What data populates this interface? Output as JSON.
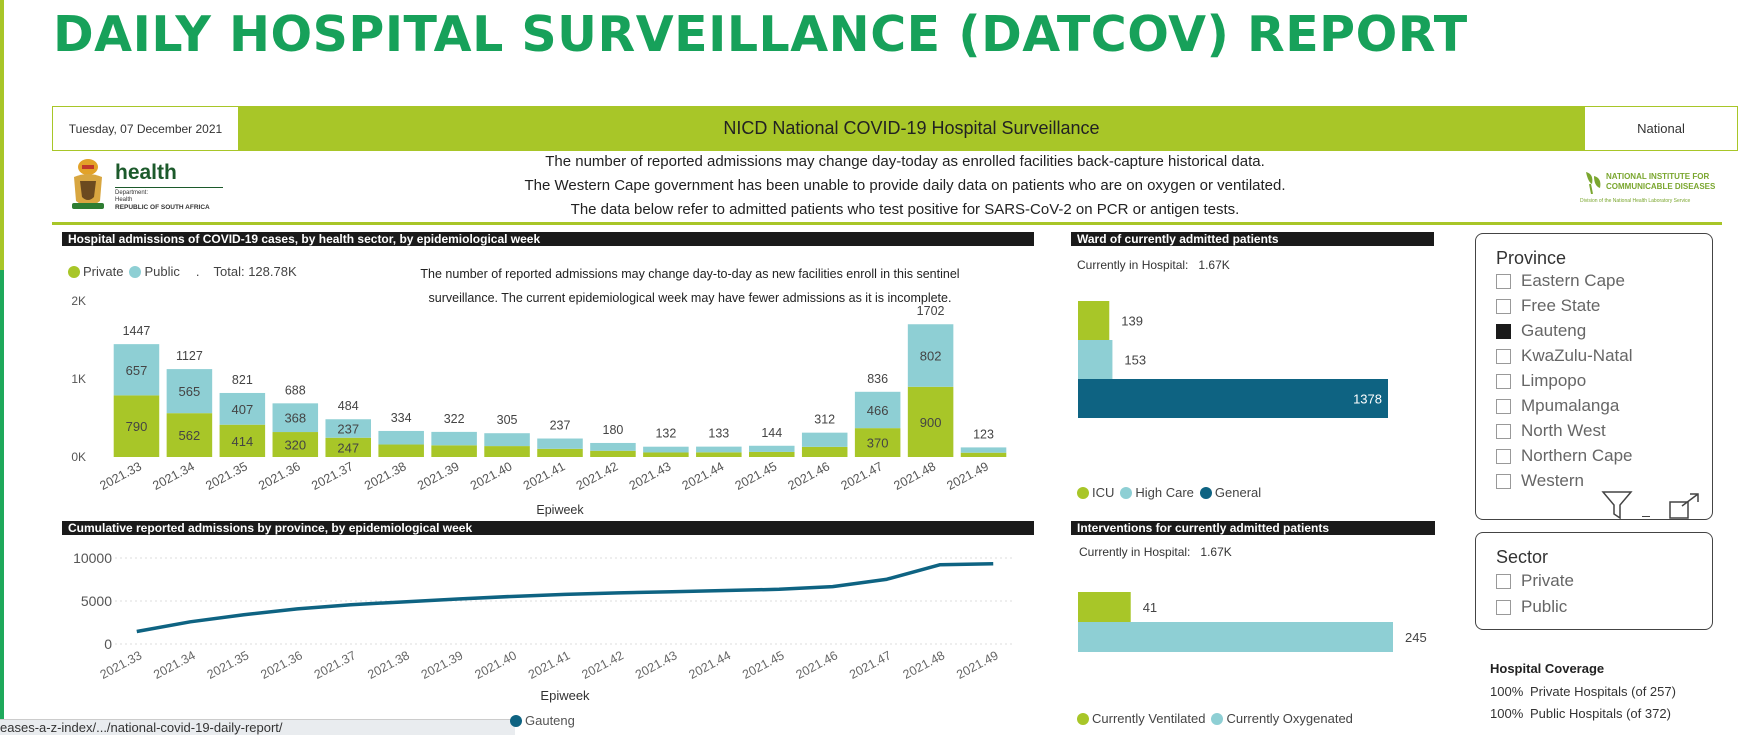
{
  "title": "DAILY HOSPITAL SURVEILLANCE (DATCOV) REPORT",
  "banner": {
    "date": "Tuesday, 07 December 2021",
    "title": "NICD National COVID-19 Hospital Surveillance",
    "scope": "National"
  },
  "logos": {
    "health_word": "health",
    "health_sub1": "Department:",
    "health_sub2": "Health",
    "health_sub3": "REPUBLIC OF SOUTH AFRICA",
    "nicd_line1": "NATIONAL INSTITUTE FOR",
    "nicd_line2": "COMMUNICABLE DISEASES",
    "nicd_line3": "Division of the National Health Laboratory Service"
  },
  "notices": [
    "The number of reported admissions may change day-today as enrolled facilities back-capture historical data.",
    "The Western Cape government has been unable to provide daily data on patients who are on oxygen or ventilated.",
    "The data below refer to admitted patients who test positive for SARS-CoV-2 on PCR or antigen tests."
  ],
  "colors": {
    "brand_green": "#17a15a",
    "lime": "#a8c628",
    "teal_light": "#8ecfd4",
    "teal_dark": "#0e6382"
  },
  "admissions_chart": {
    "header": "Hospital admissions of COVID-19 cases, by health sector, by epidemiological week",
    "legend_private": "Private",
    "legend_public": "Public",
    "legend_sep": ".",
    "total": "Total: 128.78K",
    "note_line1": "The number of reported admissions may change day-to-day as new facilities enroll in this sentinel",
    "note_line2": "surveillance. The current epidemiological week may have fewer admissions as it is incomplete."
  },
  "cumulative_chart": {
    "header": "Cumulative reported admissions by province, by epidemiological week",
    "legend_label": "Gauteng"
  },
  "ward_chart": {
    "header": "Ward of currently admitted patients",
    "current_label": "Currently in Hospital:",
    "current_value": "1.67K",
    "legend": [
      "ICU",
      "High Care",
      "General"
    ]
  },
  "interventions_chart": {
    "header": "Interventions for currently admitted patients",
    "current_label": "Currently in Hospital:",
    "current_value": "1.67K",
    "legend": [
      "Currently Ventilated",
      "Currently Oxygenated"
    ]
  },
  "province_slicer": {
    "title": "Province",
    "items": [
      {
        "label": "Eastern Cape",
        "checked": false
      },
      {
        "label": "Free State",
        "checked": false
      },
      {
        "label": "Gauteng",
        "checked": true
      },
      {
        "label": "KwaZulu-Natal",
        "checked": false
      },
      {
        "label": "Limpopo",
        "checked": false
      },
      {
        "label": "Mpumalanga",
        "checked": false
      },
      {
        "label": "North West",
        "checked": false
      },
      {
        "label": "Northern Cape",
        "checked": false
      },
      {
        "label": "Western",
        "checked": false
      }
    ]
  },
  "sector_slicer": {
    "title": "Sector",
    "items": [
      {
        "label": "Private",
        "checked": false
      },
      {
        "label": "Public",
        "checked": false
      }
    ]
  },
  "coverage": {
    "title": "Hospital Coverage",
    "rows": [
      {
        "pct": "100%",
        "label": "Private Hospitals (of 257)"
      },
      {
        "pct": "100%",
        "label": "Public Hospitals (of 372)"
      }
    ]
  },
  "url_text": "eases-a-z-index/.../national-covid-19-daily-report/",
  "chart_data": [
    {
      "type": "bar",
      "title": "Hospital admissions of COVID-19 cases, by health sector, by epidemiological week",
      "xlabel": "Epiweek",
      "ylabel": "",
      "stacked": true,
      "ylim": [
        0,
        2000
      ],
      "y_ticks": [
        "0K",
        "1K",
        "2K"
      ],
      "categories": [
        "2021.33",
        "2021.34",
        "2021.35",
        "2021.36",
        "2021.37",
        "2021.38",
        "2021.39",
        "2021.40",
        "2021.41",
        "2021.42",
        "2021.43",
        "2021.44",
        "2021.45",
        "2021.46",
        "2021.47",
        "2021.48",
        "2021.49"
      ],
      "totals": [
        1447,
        1127,
        821,
        688,
        484,
        334,
        322,
        305,
        237,
        180,
        132,
        133,
        144,
        312,
        836,
        1702,
        123
      ],
      "series": [
        {
          "name": "Private",
          "color": "#a8c628",
          "values": [
            790,
            562,
            414,
            320,
            247,
            160,
            150,
            140,
            105,
            80,
            58,
            60,
            65,
            130,
            370,
            900,
            55
          ],
          "labels": [
            "790",
            "562",
            "414",
            "320",
            "247",
            "",
            "",
            "",
            "",
            "",
            "",
            "",
            "",
            "",
            "370",
            "900",
            ""
          ]
        },
        {
          "name": "Public",
          "color": "#8ecfd4",
          "values": [
            657,
            565,
            407,
            368,
            237,
            174,
            172,
            165,
            132,
            100,
            74,
            73,
            79,
            182,
            466,
            802,
            68
          ],
          "labels": [
            "657",
            "565",
            "407",
            "368",
            "237",
            "",
            "",
            "",
            "",
            "",
            "",
            "",
            "",
            "",
            "466",
            "802",
            ""
          ]
        }
      ]
    },
    {
      "type": "line",
      "title": "Cumulative reported admissions by province, by epidemiological week",
      "xlabel": "Epiweek",
      "ylim": [
        0,
        10000
      ],
      "y_ticks": [
        "0",
        "5000",
        "10000"
      ],
      "x": [
        "2021.33",
        "2021.34",
        "2021.35",
        "2021.36",
        "2021.37",
        "2021.38",
        "2021.39",
        "2021.40",
        "2021.41",
        "2021.42",
        "2021.43",
        "2021.44",
        "2021.45",
        "2021.46",
        "2021.47",
        "2021.48",
        "2021.49"
      ],
      "series": [
        {
          "name": "Gauteng",
          "color": "#0e6382",
          "values": [
            1450,
            2580,
            3400,
            4090,
            4570,
            4900,
            5230,
            5530,
            5770,
            5950,
            6080,
            6220,
            6360,
            6670,
            7510,
            9210,
            9330
          ]
        }
      ]
    },
    {
      "type": "bar",
      "orientation": "horizontal",
      "title": "Ward of currently admitted patients",
      "categories": [
        "ICU",
        "High Care",
        "General"
      ],
      "values": [
        139,
        153,
        1378
      ],
      "colors": [
        "#a8c628",
        "#8ecfd4",
        "#0e6382"
      ],
      "value_labels": [
        "139",
        "153",
        "1378"
      ]
    },
    {
      "type": "bar",
      "orientation": "horizontal",
      "title": "Interventions for currently admitted patients",
      "categories": [
        "Currently Ventilated",
        "Currently Oxygenated"
      ],
      "values": [
        41,
        245
      ],
      "colors": [
        "#a8c628",
        "#8ecfd4"
      ],
      "value_labels": [
        "41",
        "245"
      ]
    }
  ]
}
